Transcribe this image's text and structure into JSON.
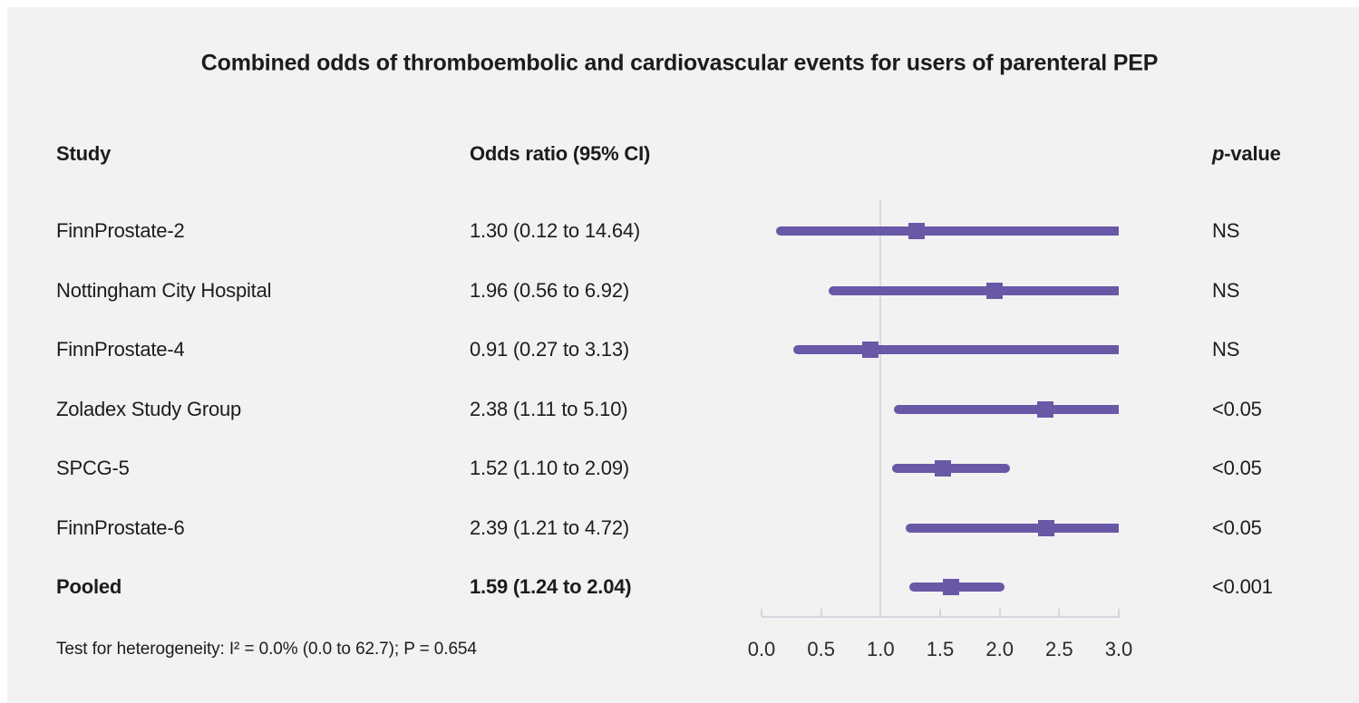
{
  "title": "Combined odds of thromboembolic and cardiovascular events for users of parenteral PEP",
  "columns": {
    "study": "Study",
    "odds_ratio": "Odds ratio (95% CI)",
    "p_prefix": "p",
    "p_suffix": "-value"
  },
  "footnote": "Test for heterogeneity: I² = 0.0% (0.0 to 62.7); P = 0.654",
  "chart_data": {
    "type": "forest",
    "title": "Combined odds of thromboembolic and cardiovascular events for users of parenteral PEP",
    "xlim": [
      0.0,
      3.0
    ],
    "x_ticks": [
      0.0,
      0.5,
      1.0,
      1.5,
      2.0,
      2.5,
      3.0
    ],
    "x_tick_labels": [
      "0.0",
      "0.5",
      "1.0",
      "1.5",
      "2.0",
      "2.5",
      "3.0"
    ],
    "reference_line": 1.0,
    "upper_ci_truncated_at": 3.0,
    "marker_color": "#6958a6",
    "line_color": "#6958a6",
    "grid": false,
    "studies": [
      {
        "study": "FinnProstate-2",
        "or": 1.3,
        "ci_low": 0.12,
        "ci_high": 14.64,
        "or_text": "1.30 (0.12 to 14.64)",
        "p_value": "NS",
        "bold": false
      },
      {
        "study": "Nottingham City Hospital",
        "or": 1.96,
        "ci_low": 0.56,
        "ci_high": 6.92,
        "or_text": "1.96 (0.56 to 6.92)",
        "p_value": "NS",
        "bold": false
      },
      {
        "study": "FinnProstate-4",
        "or": 0.91,
        "ci_low": 0.27,
        "ci_high": 3.13,
        "or_text": "0.91 (0.27 to 3.13)",
        "p_value": "NS",
        "bold": false
      },
      {
        "study": "Zoladex Study Group",
        "or": 2.38,
        "ci_low": 1.11,
        "ci_high": 5.1,
        "or_text": "2.38 (1.11 to 5.10)",
        "p_value": "<0.05",
        "bold": false
      },
      {
        "study": "SPCG-5",
        "or": 1.52,
        "ci_low": 1.1,
        "ci_high": 2.09,
        "or_text": "1.52 (1.10 to 2.09)",
        "p_value": "<0.05",
        "bold": false
      },
      {
        "study": "FinnProstate-6",
        "or": 2.39,
        "ci_low": 1.21,
        "ci_high": 4.72,
        "or_text": "2.39 (1.21 to 4.72)",
        "p_value": "<0.05",
        "bold": false
      },
      {
        "study": "Pooled",
        "or": 1.59,
        "ci_low": 1.24,
        "ci_high": 2.04,
        "or_text": "1.59 (1.24 to 2.04)",
        "p_value": "<0.001",
        "bold": true
      }
    ]
  }
}
